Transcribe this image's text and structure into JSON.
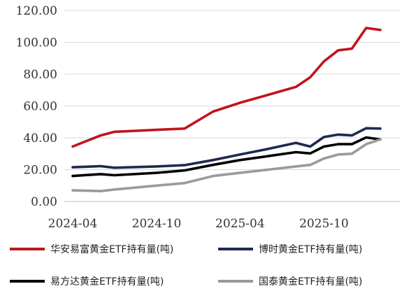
{
  "chart_data": {
    "type": "line",
    "title": "",
    "xlabel": "",
    "ylabel": "",
    "ylim": [
      0,
      120
    ],
    "yticks": [
      "0.00",
      "20.00",
      "40.00",
      "60.00",
      "80.00",
      "100.00",
      "120.00"
    ],
    "xticks": [
      "2024-04",
      "2024-10",
      "2025-04",
      "2025-10"
    ],
    "grid": "horizontal",
    "legend_position": "bottom",
    "series": [
      {
        "name": "华安易富黄金ETF持有量(吨)",
        "color": "#c0141c",
        "points": [
          [
            "2024-04",
            34.5
          ],
          [
            "2024-05",
            38.0
          ],
          [
            "2024-06",
            41.5
          ],
          [
            "2024-07",
            43.8
          ],
          [
            "2024-10",
            45.0
          ],
          [
            "2024-12",
            45.8
          ],
          [
            "2025-02",
            56.5
          ],
          [
            "2025-04",
            62.0
          ],
          [
            "2025-06",
            67.0
          ],
          [
            "2025-08",
            72.0
          ],
          [
            "2025-09",
            78.0
          ],
          [
            "2025-10",
            88.0
          ],
          [
            "2025-11",
            95.0
          ],
          [
            "2025-12",
            96.0
          ],
          [
            "2026-01",
            109.0
          ],
          [
            "2026-02",
            107.8
          ]
        ]
      },
      {
        "name": "博时黄金ETF持有量(吨)",
        "color": "#1f2a4e",
        "points": [
          [
            "2024-04",
            21.5
          ],
          [
            "2024-06",
            22.2
          ],
          [
            "2024-07",
            21.2
          ],
          [
            "2024-10",
            22.0
          ],
          [
            "2024-12",
            22.8
          ],
          [
            "2025-02",
            26.0
          ],
          [
            "2025-04",
            29.5
          ],
          [
            "2025-06",
            33.0
          ],
          [
            "2025-08",
            36.8
          ],
          [
            "2025-09",
            34.5
          ],
          [
            "2025-10",
            40.5
          ],
          [
            "2025-11",
            42.0
          ],
          [
            "2025-12",
            41.5
          ],
          [
            "2026-01",
            46.0
          ],
          [
            "2026-02",
            45.8
          ]
        ]
      },
      {
        "name": "易方达黄金ETF持有量(吨)",
        "color": "#000000",
        "points": [
          [
            "2024-04",
            16.0
          ],
          [
            "2024-06",
            17.2
          ],
          [
            "2024-07",
            16.5
          ],
          [
            "2024-10",
            18.0
          ],
          [
            "2024-12",
            19.5
          ],
          [
            "2025-02",
            23.0
          ],
          [
            "2025-04",
            26.0
          ],
          [
            "2025-06",
            28.5
          ],
          [
            "2025-08",
            31.0
          ],
          [
            "2025-09",
            30.2
          ],
          [
            "2025-10",
            34.5
          ],
          [
            "2025-11",
            36.0
          ],
          [
            "2025-12",
            36.0
          ],
          [
            "2026-01",
            40.2
          ],
          [
            "2026-02",
            39.0
          ]
        ]
      },
      {
        "name": "国泰黄金ETF持有量(吨)",
        "color": "#9a9a9a",
        "points": [
          [
            "2024-04",
            7.0
          ],
          [
            "2024-06",
            6.5
          ],
          [
            "2024-07",
            7.5
          ],
          [
            "2024-10",
            10.0
          ],
          [
            "2024-12",
            11.5
          ],
          [
            "2025-02",
            16.0
          ],
          [
            "2025-04",
            18.0
          ],
          [
            "2025-06",
            20.0
          ],
          [
            "2025-08",
            22.0
          ],
          [
            "2025-09",
            23.0
          ],
          [
            "2025-10",
            27.0
          ],
          [
            "2025-11",
            29.5
          ],
          [
            "2025-12",
            30.0
          ],
          [
            "2026-01",
            36.0
          ],
          [
            "2026-02",
            39.0
          ]
        ]
      }
    ]
  }
}
